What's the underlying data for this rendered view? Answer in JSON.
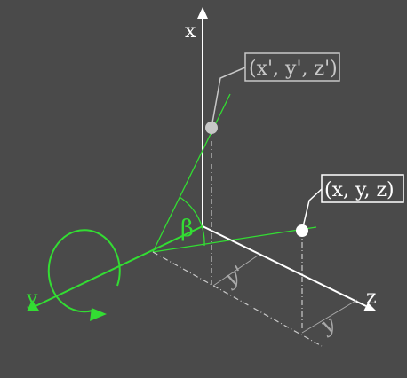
{
  "colors": {
    "background": "#4a4a4a",
    "axis": "#ffffff",
    "rotation": "#33dd33",
    "faded": "#c8c8c8",
    "guide": "#a8a8a8"
  },
  "axes": {
    "x_label": "x",
    "y_label": "y",
    "z_label": "z"
  },
  "points": {
    "rotated_label": "(x', y', z')",
    "original_label": "(x, y, z)"
  },
  "angle": {
    "label": "β"
  },
  "dimensions": {
    "y_prime_label": "y'",
    "y_label": "y"
  },
  "icons": {
    "rotation_arrow": "circular-arrow-icon"
  }
}
